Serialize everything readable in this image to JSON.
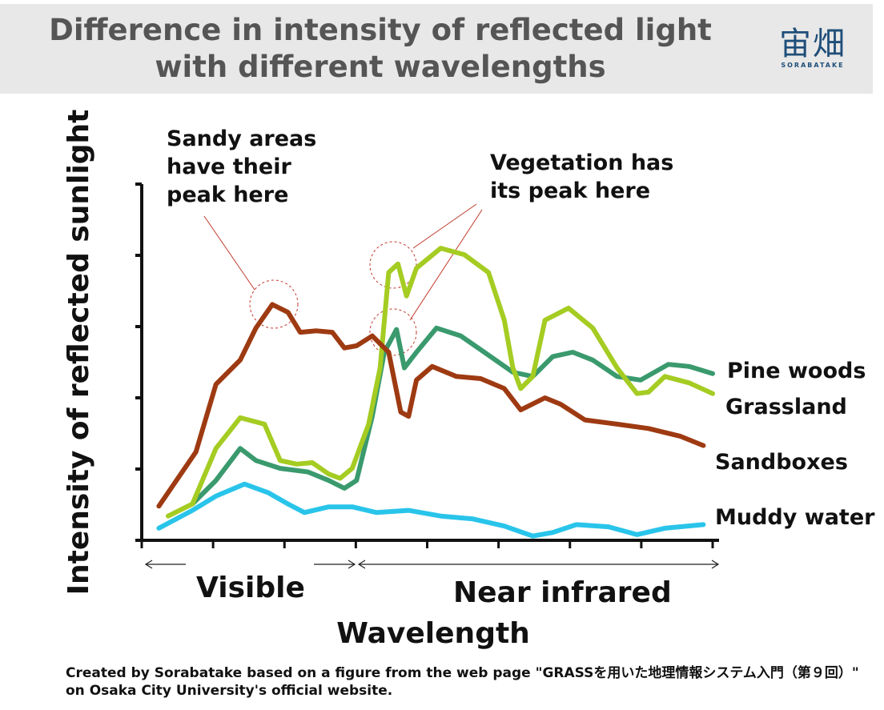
{
  "chart_data": {
    "type": "line",
    "title": "Difference in intensity of reflected light with different wavelengths",
    "x_label": "Wavelength",
    "y_label": "Intensity of reflected sunlight",
    "regions": [
      "Visible",
      "Near infrared"
    ],
    "annotations": [
      {
        "lines": [
          "Sandy areas",
          "have     their",
          "peak here"
        ]
      },
      {
        "lines": [
          "Vegetation    has",
          "its peak here"
        ]
      }
    ],
    "xlim": [
      0,
      8
    ],
    "ylim": [
      0,
      5
    ],
    "xticks": [
      0,
      1,
      2,
      3,
      4,
      5,
      6,
      7,
      8
    ],
    "yticks": [
      0,
      1,
      2,
      3,
      4,
      5
    ],
    "series": [
      {
        "name": "Pine woods",
        "color": "#3a9a6e",
        "x": [
          0.71,
          1.04,
          1.38,
          1.6,
          1.94,
          2.33,
          2.62,
          2.84,
          3.01,
          3.23,
          3.4,
          3.57,
          3.68,
          3.85,
          4.13,
          4.47,
          4.8,
          5.2,
          5.48,
          5.76,
          6.04,
          6.32,
          6.66,
          6.99,
          7.38,
          7.67,
          8.0
        ],
        "values": [
          0.51,
          0.84,
          1.29,
          1.12,
          1.01,
          0.96,
          0.84,
          0.73,
          0.84,
          1.74,
          2.64,
          2.96,
          2.42,
          2.64,
          2.98,
          2.87,
          2.64,
          2.36,
          2.3,
          2.58,
          2.64,
          2.53,
          2.3,
          2.25,
          2.47,
          2.44,
          2.34
        ]
      },
      {
        "name": "Grassland",
        "color": "#a5cc22",
        "x": [
          0.37,
          0.71,
          1.04,
          1.38,
          1.72,
          1.94,
          2.17,
          2.39,
          2.62,
          2.78,
          2.95,
          3.18,
          3.34,
          3.46,
          3.59,
          3.71,
          3.85,
          4.19,
          4.52,
          4.86,
          5.08,
          5.2,
          5.31,
          5.48,
          5.65,
          5.98,
          6.32,
          6.66,
          6.94,
          7.1,
          7.33,
          7.67,
          8.0
        ],
        "values": [
          0.34,
          0.51,
          1.29,
          1.72,
          1.63,
          1.12,
          1.07,
          1.09,
          0.93,
          0.87,
          1.01,
          1.63,
          2.42,
          3.76,
          3.88,
          3.43,
          3.82,
          4.1,
          4.01,
          3.76,
          3.09,
          2.42,
          2.13,
          2.3,
          3.09,
          3.26,
          2.98,
          2.42,
          2.06,
          2.08,
          2.3,
          2.21,
          2.06
        ]
      },
      {
        "name": "Sandboxes",
        "color": "#9e3a12",
        "x": [
          0.24,
          0.76,
          1.04,
          1.38,
          1.6,
          1.83,
          2.05,
          2.22,
          2.45,
          2.67,
          2.84,
          3.01,
          3.23,
          3.46,
          3.63,
          3.74,
          3.85,
          4.07,
          4.41,
          4.75,
          5.08,
          5.31,
          5.65,
          5.87,
          6.21,
          6.66,
          7.1,
          7.55,
          7.87
        ],
        "values": [
          0.48,
          1.24,
          2.19,
          2.53,
          2.98,
          3.31,
          3.2,
          2.92,
          2.94,
          2.92,
          2.7,
          2.73,
          2.87,
          2.64,
          1.8,
          1.74,
          2.25,
          2.44,
          2.3,
          2.27,
          2.13,
          1.83,
          2.0,
          1.91,
          1.69,
          1.63,
          1.57,
          1.46,
          1.33
        ]
      },
      {
        "name": "Muddy water",
        "color": "#29c4ea",
        "x": [
          0.24,
          0.71,
          1.04,
          1.44,
          1.77,
          2.05,
          2.28,
          2.62,
          2.95,
          3.29,
          3.74,
          4.19,
          4.64,
          5.08,
          5.48,
          5.76,
          6.09,
          6.54,
          6.94,
          7.33,
          7.87
        ],
        "values": [
          0.17,
          0.42,
          0.62,
          0.79,
          0.67,
          0.51,
          0.39,
          0.47,
          0.47,
          0.39,
          0.42,
          0.34,
          0.3,
          0.2,
          0.06,
          0.11,
          0.22,
          0.19,
          0.08,
          0.17,
          0.22
        ]
      }
    ]
  },
  "logo": {
    "mark": "宙畑",
    "text": "SORABATAKE"
  },
  "footer": {
    "source": "Created by Sorabatake based on a figure from the web page \"GRASSを用いた地理情報システム入門（第９回）\" on Osaka City University's official website."
  }
}
